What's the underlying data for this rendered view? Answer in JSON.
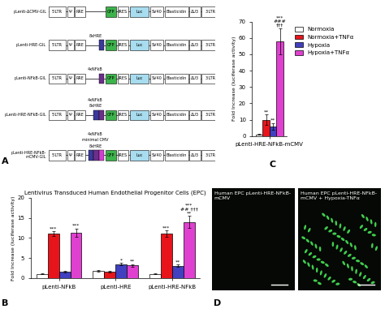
{
  "panel_labels": [
    "A",
    "B",
    "C",
    "D"
  ],
  "diagram": {
    "elements": [
      {
        "label": "5'LTR",
        "color": "#ffffff"
      },
      {
        "label": "Ψ",
        "color": "#ffffff"
      },
      {
        "label": "RRE",
        "color": "#ffffff"
      },
      {
        "label": "GFP",
        "color": "#3cb44b"
      },
      {
        "label": "IRES",
        "color": "#ffffff"
      },
      {
        "label": "Luc",
        "color": "#a8dcef"
      },
      {
        "label": "SV40",
        "color": "#ffffff"
      },
      {
        "label": "Blasticidin",
        "color": "#ffffff"
      },
      {
        "label": "ΔU3",
        "color": "#ffffff"
      },
      {
        "label": "3'LTR",
        "color": "#ffffff"
      }
    ],
    "constructs": [
      {
        "name": "pLenti-ΔCMV-GIL",
        "insert_colors": [],
        "notes": []
      },
      {
        "name": "pLenti-HRE-GIL",
        "insert_colors": [
          "#3a3a9a"
        ],
        "notes": [
          "8xHRE"
        ]
      },
      {
        "name": "pLenti-NFkB-GIL",
        "insert_colors": [
          "#6b2f8a"
        ],
        "notes": [
          "4xNFkB"
        ]
      },
      {
        "name": "pLenti-HRE-NFkB-GIL",
        "insert_colors": [
          "#3a3a9a",
          "#6b2f8a"
        ],
        "notes": [
          "4xNFkB",
          "8xHRE"
        ]
      },
      {
        "name": "pLenti-HRE-NFkB-\nmCMV-GIL",
        "insert_colors": [
          "#3a3a9a",
          "#6b2f8a",
          "#d040d0"
        ],
        "notes": [
          "4xNFkB",
          "minimal CMV",
          "8xHRE"
        ]
      }
    ]
  },
  "chart_data": [
    {
      "type": "bar",
      "title": "Lentivirus Transduced Human Endothelial Progenitor Cells (EPC)",
      "y_label": "Fold Increase (luciferase activity)",
      "categories": [
        "pLenti-NFkB",
        "pLenti-HRE",
        "pLenti-HRE-NFkB"
      ],
      "series": [
        {
          "color": "#ffffff",
          "values": [
            1.0,
            1.7,
            1.0
          ],
          "errors": [
            0.1,
            0.2,
            0.1
          ],
          "annotations": [
            null,
            null,
            null
          ]
        },
        {
          "color": "#e8141b",
          "values": [
            11.0,
            1.6,
            11.0
          ],
          "errors": [
            0.6,
            0.2,
            0.8
          ],
          "annotations": [
            "***",
            null,
            "***"
          ]
        },
        {
          "color": "#4040c0",
          "values": [
            1.5,
            3.5,
            3.1
          ],
          "errors": [
            0.2,
            0.3,
            0.3
          ],
          "annotations": [
            null,
            "*",
            "**"
          ]
        },
        {
          "color": "#e040d0",
          "values": [
            11.3,
            3.2,
            14.0
          ],
          "errors": [
            1.0,
            0.3,
            1.5
          ],
          "annotations": [
            "***",
            "**",
            "***\n## †††\n**"
          ]
        }
      ],
      "ylim": [
        0,
        20
      ],
      "yticks": [
        0,
        5,
        10,
        15,
        20
      ]
    },
    {
      "type": "bar",
      "y_label": "Fold Increase (luciferase activity)",
      "categories": [
        "pLenti-HRE-NFkB-mCMV"
      ],
      "series": [
        {
          "name": "Normoxia",
          "color": "#ffffff",
          "values": [
            1
          ],
          "errors": [
            0.2
          ],
          "annotations": [
            null
          ]
        },
        {
          "name": "Normoxia+TNFα",
          "color": "#e8141b",
          "values": [
            10
          ],
          "errors": [
            3
          ],
          "annotations": [
            "**"
          ]
        },
        {
          "name": "Hypoxia",
          "color": "#4040c0",
          "values": [
            6
          ],
          "errors": [
            2
          ],
          "annotations": [
            "**"
          ]
        },
        {
          "name": "Hypoxia+TNFα",
          "color": "#e040d0",
          "values": [
            58
          ],
          "errors": [
            8
          ],
          "annotations": [
            "***\n###\n†††"
          ]
        }
      ],
      "ylim": [
        0,
        70
      ],
      "yticks": [
        0,
        10,
        20,
        30,
        40,
        50,
        60,
        70
      ],
      "legend": "upper left"
    }
  ],
  "micrographs": [
    {
      "text": "Human EPC pLenti-HRE-NFkB-\nmCMV",
      "cells": false
    },
    {
      "text": "Human EPC pLenti-HRE-NFkB-\nmCMV + Hypoxia-TNFα",
      "cells": true
    }
  ]
}
